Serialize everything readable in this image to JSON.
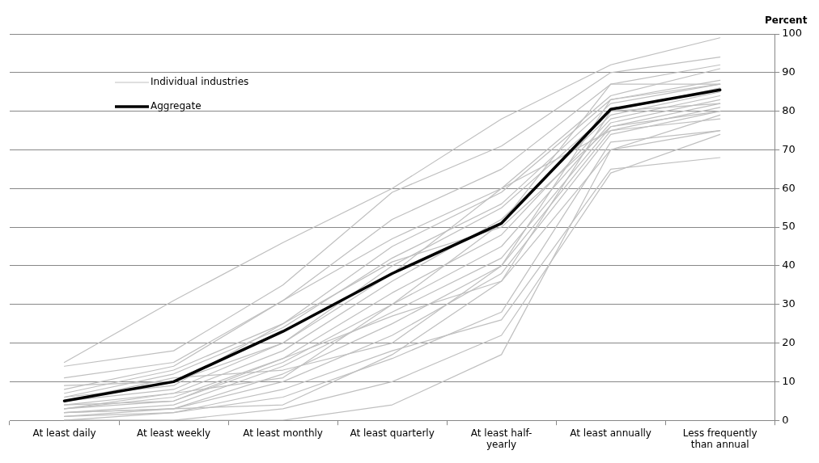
{
  "chart_data": {
    "type": "line",
    "ylabel": "Percent",
    "categories": [
      "At least daily",
      "At least weekly",
      "At least monthly",
      "At least quarterly",
      "At least half-yearly",
      "At least annually",
      "Less frequently than annual"
    ],
    "ylim": [
      0,
      100
    ],
    "yticks": [
      0,
      10,
      20,
      30,
      40,
      50,
      60,
      70,
      80,
      90,
      100
    ],
    "grid": "y",
    "legend": "top left",
    "marker": "none",
    "line_style": "solid",
    "series": [
      {
        "name": "Individual industries",
        "color": "#bfbfbf",
        "values": [
          15,
          31,
          46,
          60,
          78,
          92,
          99
        ]
      },
      {
        "color": "#bfbfbf",
        "values": [
          14,
          18,
          35,
          59,
          71,
          90,
          94
        ]
      },
      {
        "color": "#bfbfbf",
        "values": [
          11,
          15,
          31,
          52,
          65,
          87,
          92
        ]
      },
      {
        "color": "#bfbfbf",
        "values": [
          8,
          14,
          31,
          47,
          60,
          84,
          91
        ]
      },
      {
        "color": "#bfbfbf",
        "values": [
          7,
          13,
          25,
          45,
          59,
          83,
          88
        ]
      },
      {
        "color": "#bfbfbf",
        "values": [
          6,
          12,
          24,
          42,
          56,
          82,
          87
        ]
      },
      {
        "color": "#bfbfbf",
        "values": [
          5,
          8,
          20,
          40,
          55,
          80,
          86
        ]
      },
      {
        "color": "#bfbfbf",
        "values": [
          4,
          7,
          18,
          36,
          52,
          79,
          85
        ]
      },
      {
        "color": "#bfbfbf",
        "values": [
          3,
          6,
          16,
          33,
          48,
          78,
          84
        ]
      },
      {
        "color": "#bfbfbf",
        "values": [
          3,
          5,
          15,
          30,
          45,
          77,
          83
        ]
      },
      {
        "color": "#bfbfbf",
        "values": [
          2,
          4,
          14,
          28,
          42,
          76,
          82
        ]
      },
      {
        "color": "#bfbfbf",
        "values": [
          2,
          3,
          12,
          25,
          40,
          75,
          81
        ]
      },
      {
        "color": "#bfbfbf",
        "values": [
          1,
          3,
          10,
          22,
          38,
          74,
          80
        ]
      },
      {
        "color": "#bfbfbf",
        "values": [
          4,
          5,
          16,
          27,
          36,
          70,
          79
        ]
      },
      {
        "color": "#bfbfbf",
        "values": [
          0,
          2,
          6,
          16,
          28,
          72,
          75
        ]
      },
      {
        "color": "#bfbfbf",
        "values": [
          1,
          2,
          8,
          18,
          26,
          65,
          68
        ]
      },
      {
        "color": "#bfbfbf",
        "values": [
          0,
          0,
          3,
          10,
          22,
          64,
          74
        ]
      },
      {
        "color": "#bfbfbf",
        "values": [
          0,
          0,
          0,
          4,
          17,
          70,
          75
        ]
      },
      {
        "color": "#bfbfbf",
        "values": [
          9,
          10,
          20,
          38,
          60,
          75,
          78
        ]
      },
      {
        "color": "#bfbfbf",
        "values": [
          5,
          11,
          13,
          20,
          40,
          83,
          87
        ]
      },
      {
        "color": "#bfbfbf",
        "values": [
          3,
          7,
          11,
          30,
          51,
          87,
          87
        ]
      },
      {
        "color": "#bfbfbf",
        "values": [
          2,
          3,
          4,
          17,
          36,
          80,
          82
        ]
      },
      {
        "color": "#bfbfbf",
        "values": [
          6,
          9,
          25,
          41,
          50,
          76,
          80
        ]
      },
      {
        "name": "Aggregate",
        "color": "#000000",
        "values": [
          5,
          10,
          23,
          38,
          51,
          80.5,
          85.5
        ]
      }
    ]
  }
}
